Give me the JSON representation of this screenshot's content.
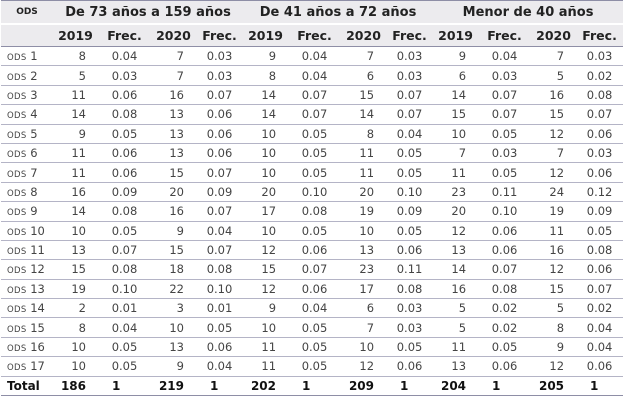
{
  "header": {
    "ods_label": "ODS",
    "groups": [
      "De 73 años a 159 años",
      "De 41 años a 72 años",
      "Menor de 40 años"
    ],
    "subcolumns": [
      "2019",
      "Frec.",
      "2020",
      "Frec.",
      "2019",
      "Frec.",
      "2020",
      "Frec.",
      "2019",
      "Frec.",
      "2020",
      "Frec."
    ]
  },
  "rows": [
    {
      "prefix": "ODS",
      "num": "1",
      "values": [
        "8",
        "0.04",
        "7",
        "0.03",
        "9",
        "0.04",
        "7",
        "0.03",
        "9",
        "0.04",
        "7",
        "0.03"
      ]
    },
    {
      "prefix": "ODS",
      "num": "2",
      "values": [
        "5",
        "0.03",
        "7",
        "0.03",
        "8",
        "0.04",
        "6",
        "0.03",
        "6",
        "0.03",
        "5",
        "0.02"
      ]
    },
    {
      "prefix": "ODS",
      "num": "3",
      "values": [
        "11",
        "0.06",
        "16",
        "0.07",
        "14",
        "0.07",
        "15",
        "0.07",
        "14",
        "0.07",
        "16",
        "0.08"
      ]
    },
    {
      "prefix": "ODS",
      "num": "4",
      "values": [
        "14",
        "0.08",
        "13",
        "0.06",
        "14",
        "0.07",
        "14",
        "0.07",
        "15",
        "0.07",
        "15",
        "0.07"
      ]
    },
    {
      "prefix": "ODS",
      "num": "5",
      "values": [
        "9",
        "0.05",
        "13",
        "0.06",
        "10",
        "0.05",
        "8",
        "0.04",
        "10",
        "0.05",
        "12",
        "0.06"
      ]
    },
    {
      "prefix": "ODS",
      "num": "6",
      "values": [
        "11",
        "0.06",
        "13",
        "0.06",
        "10",
        "0.05",
        "11",
        "0.05",
        "7",
        "0.03",
        "7",
        "0.03"
      ]
    },
    {
      "prefix": "ODS",
      "num": "7",
      "values": [
        "11",
        "0.06",
        "15",
        "0.07",
        "10",
        "0.05",
        "11",
        "0.05",
        "11",
        "0.05",
        "12",
        "0.06"
      ]
    },
    {
      "prefix": "ODS",
      "num": "8",
      "values": [
        "16",
        "0.09",
        "20",
        "0.09",
        "20",
        "0.10",
        "20",
        "0.10",
        "23",
        "0.11",
        "24",
        "0.12"
      ]
    },
    {
      "prefix": "ODS",
      "num": "9",
      "values": [
        "14",
        "0.08",
        "16",
        "0.07",
        "17",
        "0.08",
        "19",
        "0.09",
        "20",
        "0.10",
        "19",
        "0.09"
      ]
    },
    {
      "prefix": "ODS",
      "num": "10",
      "values": [
        "10",
        "0.05",
        "9",
        "0.04",
        "10",
        "0.05",
        "10",
        "0.05",
        "12",
        "0.06",
        "11",
        "0.05"
      ]
    },
    {
      "prefix": "ODS",
      "num": "11",
      "values": [
        "13",
        "0.07",
        "15",
        "0.07",
        "12",
        "0.06",
        "13",
        "0.06",
        "13",
        "0.06",
        "16",
        "0.08"
      ]
    },
    {
      "prefix": "ODS",
      "num": "12",
      "values": [
        "15",
        "0.08",
        "18",
        "0.08",
        "15",
        "0.07",
        "23",
        "0.11",
        "14",
        "0.07",
        "12",
        "0.06"
      ]
    },
    {
      "prefix": "ODS",
      "num": "13",
      "values": [
        "19",
        "0.10",
        "22",
        "0.10",
        "12",
        "0.06",
        "17",
        "0.08",
        "16",
        "0.08",
        "15",
        "0.07"
      ]
    },
    {
      "prefix": "ODS",
      "num": "14",
      "values": [
        "2",
        "0.01",
        "3",
        "0.01",
        "9",
        "0.04",
        "6",
        "0.03",
        "5",
        "0.02",
        "5",
        "0.02"
      ]
    },
    {
      "prefix": "ODS",
      "num": "15",
      "values": [
        "8",
        "0.04",
        "10",
        "0.05",
        "10",
        "0.05",
        "7",
        "0.03",
        "5",
        "0.02",
        "8",
        "0.04"
      ]
    },
    {
      "prefix": "ODS",
      "num": "16",
      "values": [
        "10",
        "0.05",
        "13",
        "0.06",
        "11",
        "0.05",
        "10",
        "0.05",
        "11",
        "0.05",
        "9",
        "0.04"
      ]
    },
    {
      "prefix": "ODS",
      "num": "17",
      "values": [
        "10",
        "0.05",
        "9",
        "0.04",
        "11",
        "0.05",
        "12",
        "0.06",
        "13",
        "0.06",
        "12",
        "0.06"
      ]
    }
  ],
  "total": {
    "label": "Total",
    "values": [
      "186",
      "1",
      "219",
      "1",
      "202",
      "1",
      "209",
      "1",
      "204",
      "1",
      "205",
      "1"
    ]
  }
}
